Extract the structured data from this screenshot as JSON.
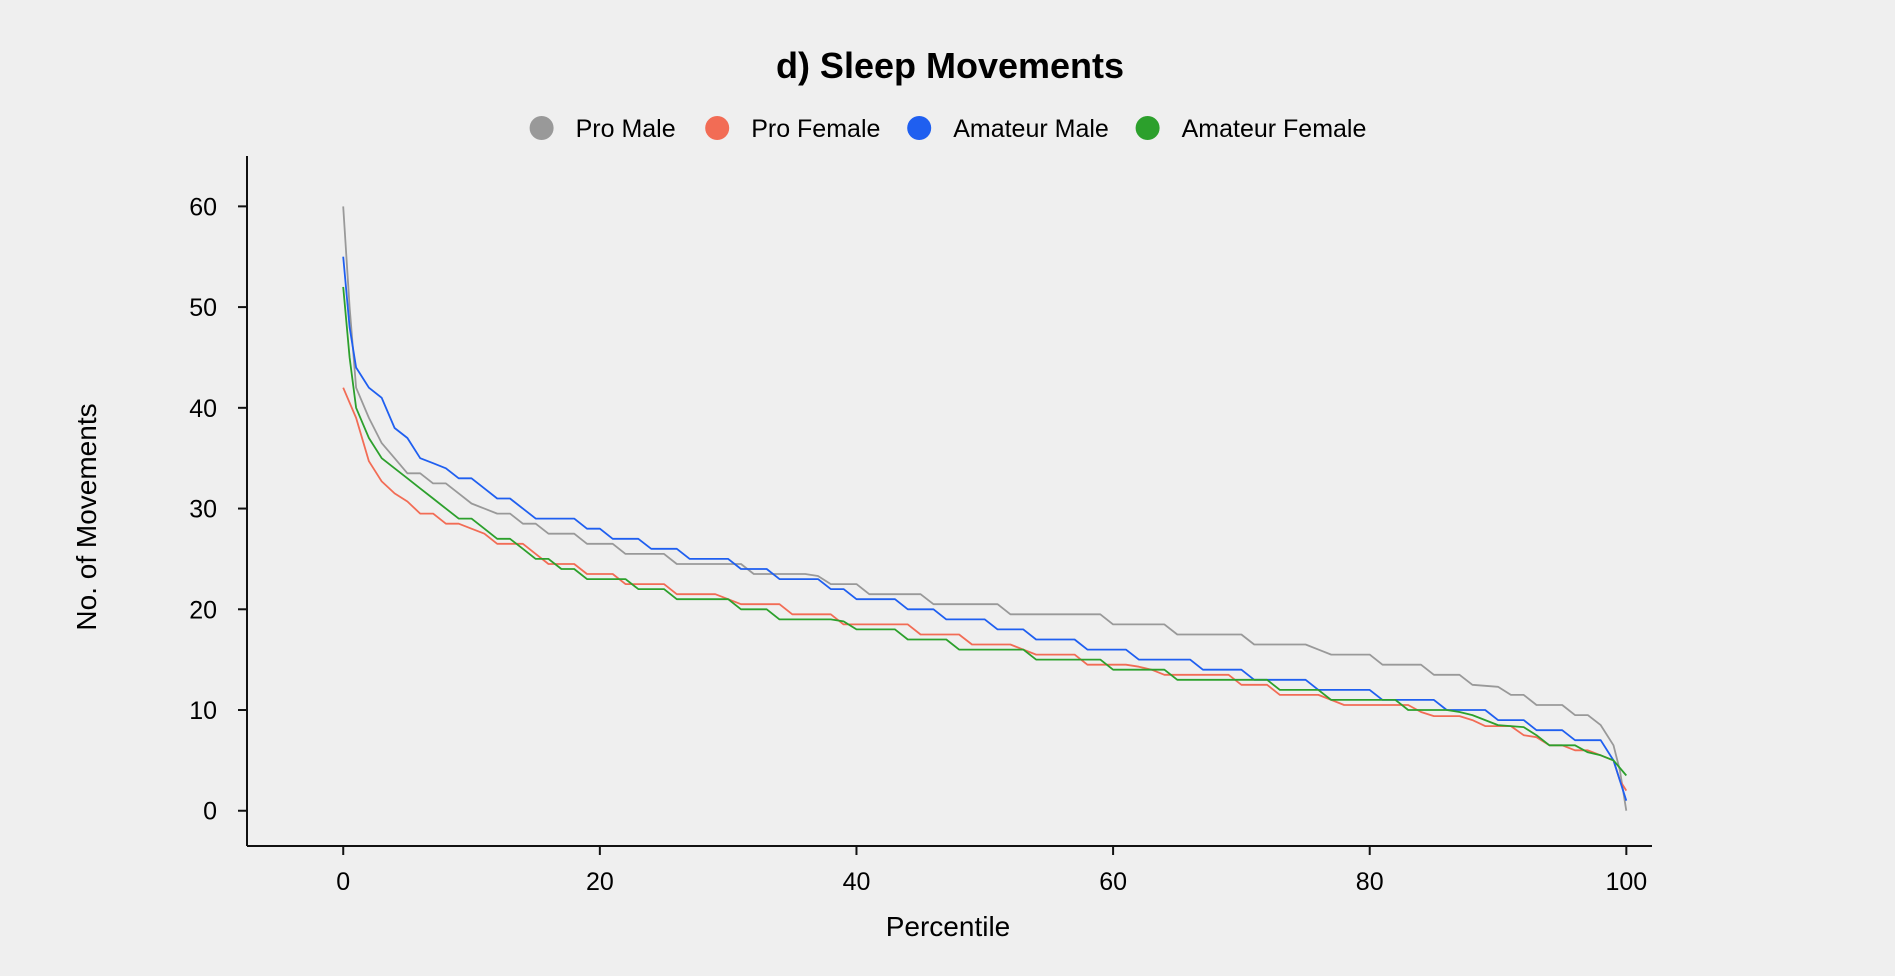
{
  "chart_data": {
    "type": "line",
    "title": "d) Sleep Movements",
    "xlabel": "Percentile",
    "ylabel": "No. of Movements",
    "xlim": [
      -7.5,
      102
    ],
    "ylim": [
      -3.5,
      65
    ],
    "xticks": [
      0,
      20,
      40,
      60,
      80,
      100
    ],
    "yticks": [
      0,
      10,
      20,
      30,
      40,
      50,
      60
    ],
    "grid": false,
    "legend_position": "top-center",
    "series": [
      {
        "name": "Pro Male",
        "color": "#999999",
        "points": [
          [
            0,
            60
          ],
          [
            0.5,
            50
          ],
          [
            1,
            42
          ],
          [
            2,
            39
          ],
          [
            3,
            36.5
          ],
          [
            4,
            35
          ],
          [
            5,
            33.5
          ],
          [
            6,
            33.5
          ],
          [
            7,
            32.5
          ],
          [
            8,
            32.5
          ],
          [
            9,
            31.5
          ],
          [
            10,
            30.5
          ],
          [
            11,
            30
          ],
          [
            12,
            29.5
          ],
          [
            13,
            29.5
          ],
          [
            14,
            28.5
          ],
          [
            15,
            28.5
          ],
          [
            16,
            27.5
          ],
          [
            18,
            27.5
          ],
          [
            19,
            26.5
          ],
          [
            21,
            26.5
          ],
          [
            22,
            25.5
          ],
          [
            25,
            25.5
          ],
          [
            26,
            24.5
          ],
          [
            31,
            24.5
          ],
          [
            32,
            23.5
          ],
          [
            36,
            23.5
          ],
          [
            37,
            23.3
          ],
          [
            38,
            22.5
          ],
          [
            40,
            22.5
          ],
          [
            41,
            21.5
          ],
          [
            45,
            21.5
          ],
          [
            46,
            20.5
          ],
          [
            51,
            20.5
          ],
          [
            52,
            19.5
          ],
          [
            59,
            19.5
          ],
          [
            60,
            18.5
          ],
          [
            64,
            18.5
          ],
          [
            65,
            17.5
          ],
          [
            70,
            17.5
          ],
          [
            71,
            16.5
          ],
          [
            75,
            16.5
          ],
          [
            76,
            16
          ],
          [
            77,
            15.5
          ],
          [
            80,
            15.5
          ],
          [
            81,
            14.5
          ],
          [
            84,
            14.5
          ],
          [
            85,
            13.5
          ],
          [
            87,
            13.5
          ],
          [
            88,
            12.5
          ],
          [
            89,
            12.4
          ],
          [
            90,
            12.3
          ],
          [
            91,
            11.5
          ],
          [
            92,
            11.5
          ],
          [
            93,
            10.5
          ],
          [
            95,
            10.5
          ],
          [
            96,
            9.5
          ],
          [
            97,
            9.5
          ],
          [
            98,
            8.5
          ],
          [
            99,
            6.5
          ],
          [
            99.5,
            4
          ],
          [
            100,
            0
          ]
        ]
      },
      {
        "name": "Pro Female",
        "color": "#f26c55",
        "points": [
          [
            0,
            42
          ],
          [
            1,
            39
          ],
          [
            2,
            34.7
          ],
          [
            3,
            32.7
          ],
          [
            4,
            31.5
          ],
          [
            5,
            30.7
          ],
          [
            6,
            29.5
          ],
          [
            7,
            29.5
          ],
          [
            8,
            28.5
          ],
          [
            9,
            28.5
          ],
          [
            10,
            28
          ],
          [
            11,
            27.5
          ],
          [
            12,
            26.5
          ],
          [
            14,
            26.5
          ],
          [
            15,
            25.5
          ],
          [
            16,
            24.5
          ],
          [
            18,
            24.5
          ],
          [
            19,
            23.5
          ],
          [
            21,
            23.5
          ],
          [
            22,
            22.5
          ],
          [
            25,
            22.5
          ],
          [
            26,
            21.5
          ],
          [
            29,
            21.5
          ],
          [
            30,
            21
          ],
          [
            31,
            20.5
          ],
          [
            34,
            20.5
          ],
          [
            35,
            19.5
          ],
          [
            38,
            19.5
          ],
          [
            39,
            18.5
          ],
          [
            44,
            18.5
          ],
          [
            45,
            17.5
          ],
          [
            48,
            17.5
          ],
          [
            49,
            16.5
          ],
          [
            52,
            16.5
          ],
          [
            53,
            16
          ],
          [
            54,
            15.5
          ],
          [
            57,
            15.5
          ],
          [
            58,
            14.5
          ],
          [
            61,
            14.5
          ],
          [
            62,
            14.3
          ],
          [
            63,
            14
          ],
          [
            64,
            13.5
          ],
          [
            69,
            13.5
          ],
          [
            70,
            12.5
          ],
          [
            72,
            12.5
          ],
          [
            73,
            11.5
          ],
          [
            76,
            11.5
          ],
          [
            77,
            11
          ],
          [
            78,
            10.5
          ],
          [
            83,
            10.5
          ],
          [
            84,
            9.8
          ],
          [
            85,
            9.4
          ],
          [
            87,
            9.4
          ],
          [
            88,
            9
          ],
          [
            89,
            8.4
          ],
          [
            91,
            8.4
          ],
          [
            92,
            7.5
          ],
          [
            93,
            7.3
          ],
          [
            94,
            6.5
          ],
          [
            95,
            6.5
          ],
          [
            96,
            6
          ],
          [
            97,
            6
          ],
          [
            98,
            5.5
          ],
          [
            99,
            5
          ],
          [
            99.5,
            3
          ],
          [
            100,
            2
          ]
        ]
      },
      {
        "name": "Amateur Male",
        "color": "#1f5ff0",
        "points": [
          [
            0,
            55
          ],
          [
            0.5,
            48
          ],
          [
            1,
            44
          ],
          [
            2,
            42
          ],
          [
            3,
            41
          ],
          [
            4,
            38
          ],
          [
            5,
            37
          ],
          [
            6,
            35
          ],
          [
            7,
            34.5
          ],
          [
            8,
            34
          ],
          [
            9,
            33
          ],
          [
            10,
            33
          ],
          [
            11,
            32
          ],
          [
            12,
            31
          ],
          [
            13,
            31
          ],
          [
            14,
            30
          ],
          [
            15,
            29
          ],
          [
            18,
            29
          ],
          [
            19,
            28
          ],
          [
            20,
            28
          ],
          [
            21,
            27
          ],
          [
            23,
            27
          ],
          [
            24,
            26
          ],
          [
            26,
            26
          ],
          [
            27,
            25
          ],
          [
            30,
            25
          ],
          [
            31,
            24
          ],
          [
            33,
            24
          ],
          [
            34,
            23
          ],
          [
            37,
            23
          ],
          [
            38,
            22
          ],
          [
            39,
            22
          ],
          [
            40,
            21
          ],
          [
            43,
            21
          ],
          [
            44,
            20
          ],
          [
            46,
            20
          ],
          [
            47,
            19
          ],
          [
            50,
            19
          ],
          [
            51,
            18
          ],
          [
            53,
            18
          ],
          [
            54,
            17
          ],
          [
            57,
            17
          ],
          [
            58,
            16
          ],
          [
            61,
            16
          ],
          [
            62,
            15
          ],
          [
            66,
            15
          ],
          [
            67,
            14
          ],
          [
            70,
            14
          ],
          [
            71,
            13
          ],
          [
            75,
            13
          ],
          [
            76,
            12
          ],
          [
            80,
            12
          ],
          [
            81,
            11
          ],
          [
            85,
            11
          ],
          [
            86,
            10
          ],
          [
            89,
            10
          ],
          [
            90,
            9
          ],
          [
            92,
            9
          ],
          [
            93,
            8
          ],
          [
            95,
            8
          ],
          [
            96,
            7
          ],
          [
            98,
            7
          ],
          [
            99,
            5
          ],
          [
            100,
            1
          ]
        ]
      },
      {
        "name": "Amateur Female",
        "color": "#2ca02c",
        "points": [
          [
            0,
            52
          ],
          [
            0.5,
            45
          ],
          [
            1,
            40
          ],
          [
            2,
            37
          ],
          [
            3,
            35
          ],
          [
            4,
            34
          ],
          [
            5,
            33
          ],
          [
            6,
            32
          ],
          [
            7,
            31
          ],
          [
            8,
            30
          ],
          [
            9,
            29
          ],
          [
            10,
            29
          ],
          [
            11,
            28
          ],
          [
            12,
            27
          ],
          [
            13,
            27
          ],
          [
            14,
            26
          ],
          [
            15,
            25
          ],
          [
            16,
            25
          ],
          [
            17,
            24
          ],
          [
            18,
            24
          ],
          [
            19,
            23
          ],
          [
            22,
            23
          ],
          [
            23,
            22
          ],
          [
            25,
            22
          ],
          [
            26,
            21
          ],
          [
            30,
            21
          ],
          [
            31,
            20
          ],
          [
            33,
            20
          ],
          [
            34,
            19
          ],
          [
            38,
            19
          ],
          [
            39,
            18.8
          ],
          [
            40,
            18
          ],
          [
            43,
            18
          ],
          [
            44,
            17
          ],
          [
            47,
            17
          ],
          [
            48,
            16
          ],
          [
            53,
            16
          ],
          [
            54,
            15
          ],
          [
            59,
            15
          ],
          [
            60,
            14
          ],
          [
            64,
            14
          ],
          [
            65,
            13
          ],
          [
            72,
            13
          ],
          [
            73,
            12
          ],
          [
            76,
            12
          ],
          [
            77,
            11
          ],
          [
            82,
            11
          ],
          [
            83,
            10
          ],
          [
            86,
            10
          ],
          [
            87,
            9.8
          ],
          [
            88,
            9.5
          ],
          [
            89,
            9
          ],
          [
            90,
            8.5
          ],
          [
            92,
            8.3
          ],
          [
            93,
            7.5
          ],
          [
            94,
            6.5
          ],
          [
            96,
            6.5
          ],
          [
            97,
            5.8
          ],
          [
            98,
            5.5
          ],
          [
            99,
            5
          ],
          [
            100,
            3.5
          ]
        ]
      }
    ]
  }
}
